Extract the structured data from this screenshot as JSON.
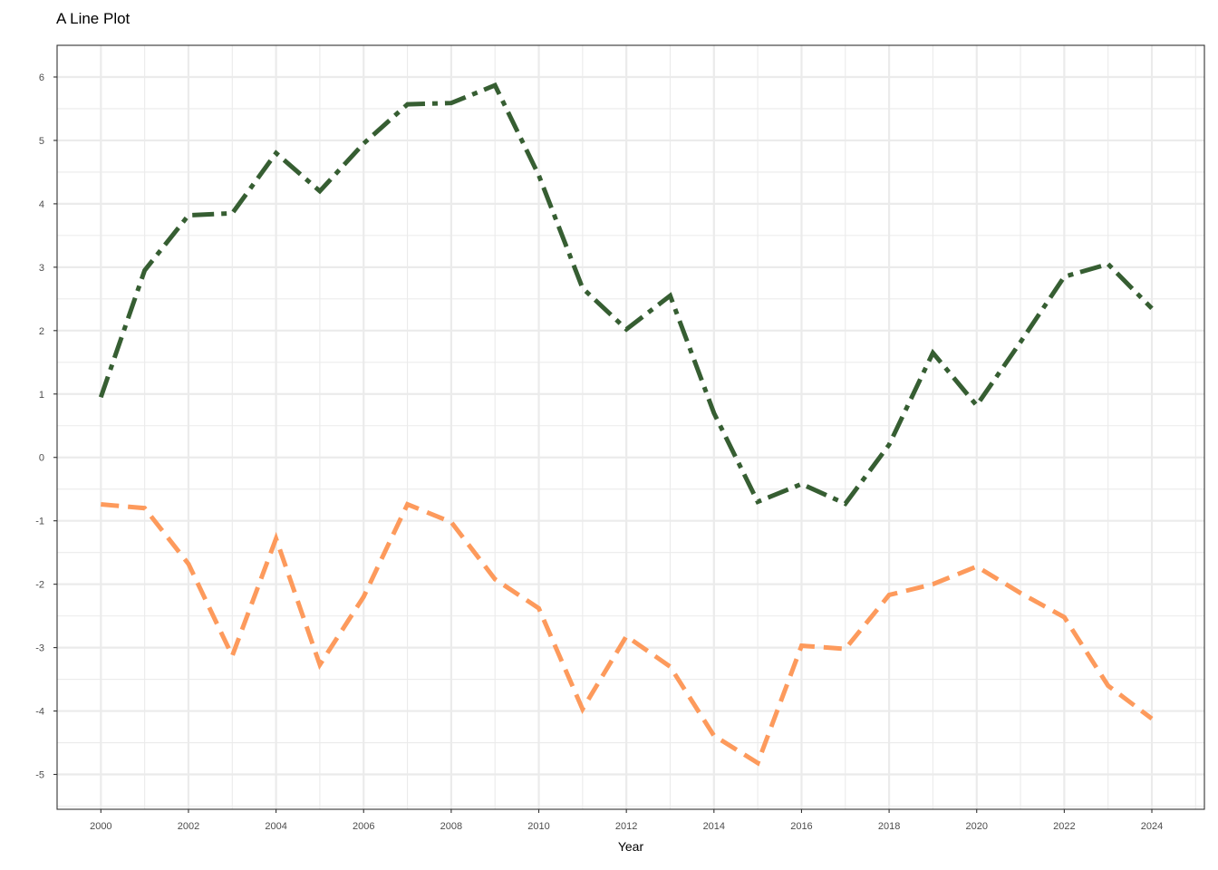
{
  "chart_data": {
    "type": "line",
    "title": "A Line Plot",
    "xlabel": "Year",
    "ylabel": "",
    "xlim": [
      1999,
      2025.2
    ],
    "ylim": [
      -5.55,
      6.5
    ],
    "x_ticks": [
      2000,
      2002,
      2004,
      2006,
      2008,
      2010,
      2012,
      2014,
      2016,
      2018,
      2020,
      2022,
      2024
    ],
    "y_ticks": [
      -5,
      -4,
      -3,
      -2,
      -1,
      0,
      1,
      2,
      3,
      4,
      5,
      6
    ],
    "grid": true,
    "legend": "none",
    "x": [
      2000,
      2001,
      2002,
      2003,
      2004,
      2005,
      2006,
      2007,
      2008,
      2009,
      2010,
      2011,
      2012,
      2013,
      2014,
      2015,
      2016,
      2017,
      2018,
      2019,
      2020,
      2021,
      2022,
      2023,
      2024
    ],
    "series": [
      {
        "color": "#365e32",
        "dash": "longdash-dot",
        "values": [
          0.95,
          2.95,
          3.82,
          3.85,
          4.8,
          4.2,
          4.95,
          5.57,
          5.59,
          5.87,
          4.45,
          2.67,
          2.02,
          2.55,
          0.7,
          -0.7,
          -0.42,
          -0.73,
          0.2,
          1.65,
          0.82,
          1.82,
          2.85,
          3.05,
          2.35
        ]
      },
      {
        "color": "#fd9a5c",
        "dash": "dashed",
        "values": [
          -0.74,
          -0.8,
          -1.68,
          -3.13,
          -1.28,
          -3.27,
          -2.2,
          -0.74,
          -1.02,
          -1.92,
          -2.38,
          -3.97,
          -2.82,
          -3.3,
          -4.39,
          -4.82,
          -2.97,
          -3.02,
          -2.17,
          -2.0,
          -1.72,
          -2.14,
          -2.52,
          -3.6,
          -4.12
        ]
      }
    ]
  }
}
